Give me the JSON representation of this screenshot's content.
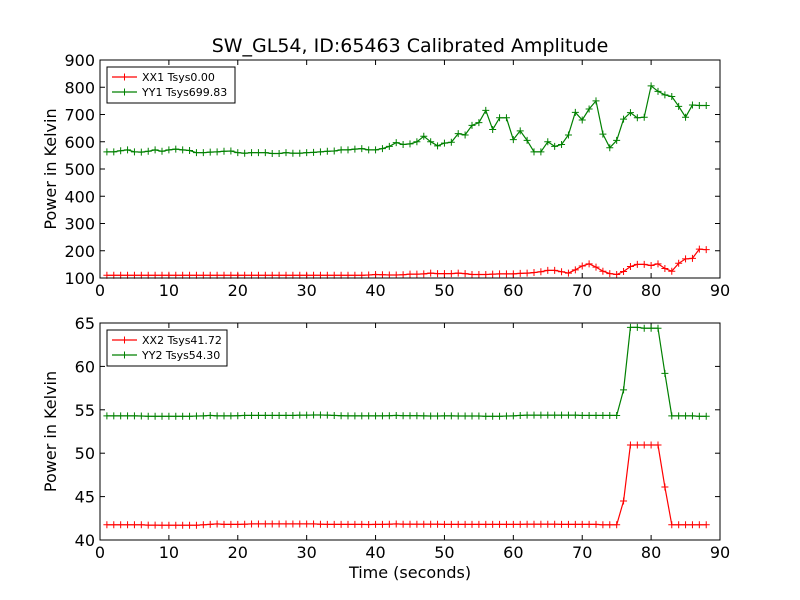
{
  "chart_data": [
    {
      "type": "line",
      "title": "SW_GL54, ID:65463 Calibrated Amplitude",
      "xlabel": "",
      "ylabel": "Power in Kelvin",
      "xlim": [
        0,
        90
      ],
      "ylim": [
        100,
        900
      ],
      "xticks": [
        0,
        10,
        20,
        30,
        40,
        50,
        60,
        70,
        80,
        90
      ],
      "yticks": [
        100,
        200,
        300,
        400,
        500,
        600,
        700,
        800,
        900
      ],
      "legend_position": "top-left",
      "x": [
        1,
        2,
        3,
        4,
        5,
        6,
        7,
        8,
        9,
        10,
        11,
        12,
        13,
        14,
        15,
        16,
        17,
        18,
        19,
        20,
        21,
        22,
        23,
        24,
        25,
        26,
        27,
        28,
        29,
        30,
        31,
        32,
        33,
        34,
        35,
        36,
        37,
        38,
        39,
        40,
        41,
        42,
        43,
        44,
        45,
        46,
        47,
        48,
        49,
        50,
        51,
        52,
        53,
        54,
        55,
        56,
        57,
        58,
        59,
        60,
        61,
        62,
        63,
        64,
        65,
        66,
        67,
        68,
        69,
        70,
        71,
        72,
        73,
        74,
        75,
        76,
        77,
        78,
        79,
        80,
        81,
        82,
        83,
        84,
        85,
        86,
        87,
        88
      ],
      "series": [
        {
          "name": "XX1 Tsys0.00",
          "color": "#ff0000",
          "values": [
            110,
            110,
            110,
            110,
            110,
            110,
            110,
            110,
            110,
            110,
            110,
            110,
            110,
            110,
            110,
            110,
            110,
            110,
            110,
            110,
            110,
            110,
            110,
            110,
            110,
            110,
            110,
            110,
            110,
            110,
            110,
            110,
            110,
            110,
            110,
            110,
            110,
            110,
            111,
            113,
            112,
            111,
            111,
            112,
            114,
            114,
            115,
            118,
            116,
            116,
            116,
            118,
            116,
            113,
            113,
            113,
            114,
            115,
            115,
            115,
            117,
            118,
            120,
            123,
            128,
            128,
            123,
            118,
            130,
            144,
            152,
            140,
            125,
            116,
            113,
            124,
            142,
            150,
            150,
            146,
            152,
            135,
            125,
            154,
            170,
            172,
            206,
            204
          ]
        },
        {
          "name": "YY1 Tsys699.83",
          "color": "#008000",
          "values": [
            563,
            563,
            567,
            570,
            563,
            562,
            565,
            570,
            565,
            570,
            573,
            570,
            568,
            560,
            560,
            562,
            563,
            565,
            566,
            560,
            558,
            560,
            560,
            560,
            557,
            557,
            560,
            558,
            558,
            560,
            561,
            563,
            565,
            566,
            570,
            570,
            573,
            575,
            570,
            570,
            575,
            583,
            597,
            590,
            592,
            600,
            620,
            600,
            585,
            595,
            598,
            630,
            625,
            660,
            670,
            715,
            645,
            688,
            688,
            608,
            640,
            605,
            563,
            563,
            600,
            583,
            590,
            625,
            708,
            680,
            720,
            750,
            628,
            578,
            605,
            683,
            707,
            688,
            690,
            805,
            785,
            772,
            766,
            730,
            690,
            735,
            733,
            733
          ]
        }
      ]
    },
    {
      "type": "line",
      "title": "",
      "xlabel": "Time (seconds)",
      "ylabel": "Power in Kelvin",
      "xlim": [
        0,
        90
      ],
      "ylim": [
        40,
        65
      ],
      "xticks": [
        0,
        10,
        20,
        30,
        40,
        50,
        60,
        70,
        80,
        90
      ],
      "yticks": [
        40,
        45,
        50,
        55,
        60,
        65
      ],
      "legend_position": "top-left",
      "x": [
        1,
        2,
        3,
        4,
        5,
        6,
        7,
        8,
        9,
        10,
        11,
        12,
        13,
        14,
        15,
        16,
        17,
        18,
        19,
        20,
        21,
        22,
        23,
        24,
        25,
        26,
        27,
        28,
        29,
        30,
        31,
        32,
        33,
        34,
        35,
        36,
        37,
        38,
        39,
        40,
        41,
        42,
        43,
        44,
        45,
        46,
        47,
        48,
        49,
        50,
        51,
        52,
        53,
        54,
        55,
        56,
        57,
        58,
        59,
        60,
        61,
        62,
        63,
        64,
        65,
        66,
        67,
        68,
        69,
        70,
        71,
        72,
        73,
        74,
        75,
        76,
        77,
        78,
        79,
        80,
        81,
        82,
        83,
        84,
        85,
        86,
        87,
        88
      ],
      "series": [
        {
          "name": "XX2 Tsys41.72",
          "color": "#ff0000",
          "values": [
            41.75,
            41.75,
            41.75,
            41.75,
            41.75,
            41.75,
            41.72,
            41.72,
            41.7,
            41.7,
            41.7,
            41.7,
            41.7,
            41.7,
            41.75,
            41.8,
            41.85,
            41.8,
            41.8,
            41.8,
            41.82,
            41.85,
            41.85,
            41.85,
            41.85,
            41.85,
            41.85,
            41.85,
            41.85,
            41.85,
            41.85,
            41.82,
            41.8,
            41.8,
            41.8,
            41.8,
            41.8,
            41.8,
            41.78,
            41.8,
            41.8,
            41.82,
            41.85,
            41.82,
            41.82,
            41.82,
            41.82,
            41.82,
            41.82,
            41.8,
            41.8,
            41.8,
            41.8,
            41.8,
            41.8,
            41.8,
            41.8,
            41.8,
            41.8,
            41.8,
            41.8,
            41.82,
            41.82,
            41.82,
            41.82,
            41.82,
            41.8,
            41.8,
            41.8,
            41.8,
            41.8,
            41.8,
            41.75,
            41.75,
            41.75,
            44.5,
            50.95,
            50.95,
            50.95,
            50.95,
            50.95,
            46.1,
            41.75,
            41.75,
            41.75,
            41.75,
            41.75,
            41.75
          ]
        },
        {
          "name": "YY2 Tsys54.30",
          "color": "#008000",
          "values": [
            54.3,
            54.3,
            54.3,
            54.3,
            54.3,
            54.28,
            54.25,
            54.25,
            54.25,
            54.25,
            54.25,
            54.25,
            54.25,
            54.28,
            54.3,
            54.35,
            54.3,
            54.3,
            54.3,
            54.32,
            54.35,
            54.35,
            54.35,
            54.35,
            54.35,
            54.35,
            54.35,
            54.35,
            54.38,
            54.38,
            54.4,
            54.4,
            54.38,
            54.35,
            54.32,
            54.3,
            54.3,
            54.3,
            54.3,
            54.3,
            54.3,
            54.32,
            54.35,
            54.32,
            54.32,
            54.32,
            54.3,
            54.28,
            54.28,
            54.3,
            54.3,
            54.28,
            54.28,
            54.28,
            54.28,
            54.25,
            54.25,
            54.25,
            54.28,
            54.3,
            54.35,
            54.38,
            54.38,
            54.38,
            54.38,
            54.38,
            54.38,
            54.38,
            54.38,
            54.35,
            54.35,
            54.35,
            54.35,
            54.35,
            54.35,
            57.3,
            64.5,
            64.5,
            64.4,
            64.4,
            64.4,
            59.2,
            54.3,
            54.3,
            54.3,
            54.3,
            54.25,
            54.25
          ]
        }
      ]
    }
  ]
}
